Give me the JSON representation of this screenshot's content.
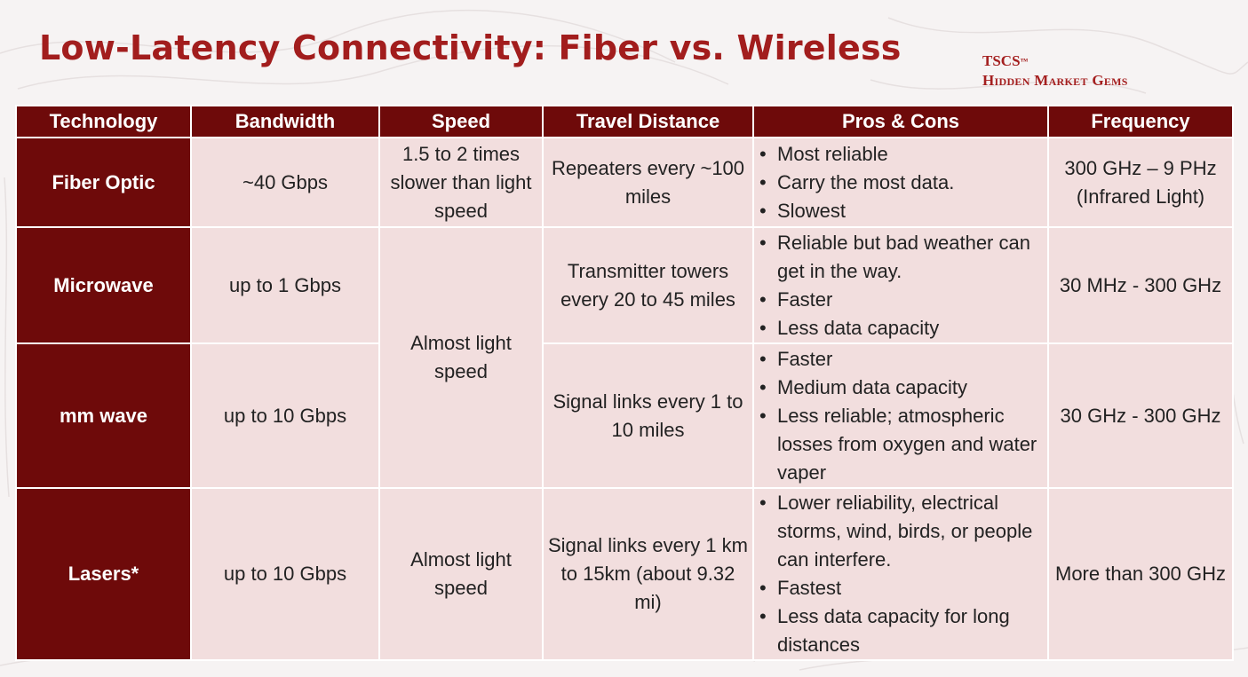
{
  "title": "Low-Latency Connectivity: Fiber vs. Wireless",
  "brand": {
    "name": "TSCS",
    "trademark": "™",
    "tagline": "Hidden Market Gems"
  },
  "colors": {
    "accent": "#a21d1d",
    "header_bg": "#6e0a0a",
    "cell_bg": "#f2dede"
  },
  "table": {
    "headers": [
      "Technology",
      "Bandwidth",
      "Speed",
      "Travel Distance",
      "Pros & Cons",
      "Frequency"
    ],
    "rows": [
      {
        "technology": "Fiber Optic",
        "bandwidth": "~40 Gbps",
        "speed": "1.5 to 2 times slower than light speed",
        "distance": "Repeaters every ~100 miles",
        "pros": [
          "Most reliable",
          "Carry the most data.",
          "Slowest"
        ],
        "frequency": "300 GHz – 9 PHz (Infrared Light)"
      },
      {
        "technology": "Microwave",
        "bandwidth": "up to 1 Gbps",
        "speed": "Almost light speed",
        "distance": "Transmitter towers every 20 to 45 miles",
        "pros": [
          "Reliable but bad weather can get in the way.",
          "Faster",
          "Less data capacity"
        ],
        "frequency": "30 MHz - 300 GHz"
      },
      {
        "technology": "mm wave",
        "bandwidth": "up to 10 Gbps",
        "distance": "Signal links every 1 to 10 miles",
        "pros": [
          "Faster",
          "Medium data capacity",
          "Less reliable; atmospheric losses from oxygen and water vaper"
        ],
        "frequency": "30 GHz - 300 GHz"
      },
      {
        "technology": "Lasers*",
        "bandwidth": "up to 10 Gbps",
        "speed": "Almost light speed",
        "distance": "Signal links every 1 km to 15km (about 9.32 mi)",
        "pros": [
          "Lower reliability, electrical storms, wind, birds, or people can interfere.",
          "Fastest",
          "Less data capacity for long distances"
        ],
        "frequency": "More than 300 GHz"
      }
    ]
  }
}
